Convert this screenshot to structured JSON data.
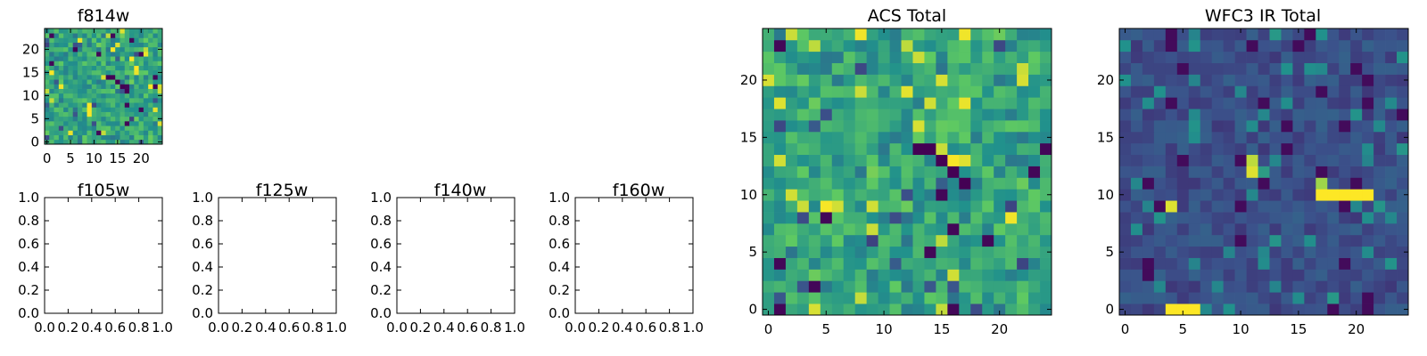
{
  "colormap": {
    "name": "viridis",
    "stops": [
      "#440154",
      "#3b528b",
      "#21918c",
      "#5ec962",
      "#fde725"
    ]
  },
  "chart_data": [
    {
      "type": "heatmap",
      "title": "f814w",
      "xlim": [
        -0.5,
        24.5
      ],
      "ylim": [
        -0.5,
        24.5
      ],
      "xticks": [
        0,
        5,
        10,
        15,
        20
      ],
      "yticks": [
        0,
        5,
        10,
        15,
        20
      ],
      "grid": "off",
      "size": 25,
      "value_range": [
        0,
        1
      ],
      "matrix": []
    },
    {
      "type": "empty",
      "title": "f105w",
      "xlim": [
        0.0,
        1.0
      ],
      "ylim": [
        0.0,
        1.0
      ],
      "xticks": [
        "0.0",
        "0.2",
        "0.4",
        "0.6",
        "0.8",
        "1.0"
      ],
      "yticks": [
        "0.0",
        "0.2",
        "0.4",
        "0.6",
        "0.8",
        "1.0"
      ]
    },
    {
      "type": "empty",
      "title": "f125w",
      "xlim": [
        0.0,
        1.0
      ],
      "ylim": [
        0.0,
        1.0
      ],
      "xticks": [
        "0.0",
        "0.2",
        "0.4",
        "0.6",
        "0.8",
        "1.0"
      ],
      "yticks": [
        "0.0",
        "0.2",
        "0.4",
        "0.6",
        "0.8",
        "1.0"
      ]
    },
    {
      "type": "empty",
      "title": "f140w",
      "xlim": [
        0.0,
        1.0
      ],
      "ylim": [
        0.0,
        1.0
      ],
      "xticks": [
        "0.0",
        "0.2",
        "0.4",
        "0.6",
        "0.8",
        "1.0"
      ],
      "yticks": [
        "0.0",
        "0.2",
        "0.4",
        "0.6",
        "0.8",
        "1.0"
      ]
    },
    {
      "type": "empty",
      "title": "f160w",
      "xlim": [
        0.0,
        1.0
      ],
      "ylim": [
        0.0,
        1.0
      ],
      "xticks": [
        "0.0",
        "0.2",
        "0.4",
        "0.6",
        "0.8",
        "1.0"
      ],
      "yticks": [
        "0.0",
        "0.2",
        "0.4",
        "0.6",
        "0.8",
        "1.0"
      ]
    },
    {
      "type": "heatmap",
      "title": "ACS Total",
      "xlim": [
        -0.5,
        24.5
      ],
      "ylim": [
        -0.5,
        24.5
      ],
      "xticks": [
        0,
        5,
        10,
        15,
        20
      ],
      "yticks": [
        0,
        5,
        10,
        15,
        20
      ],
      "grid": "off",
      "size": 25,
      "value_range": [
        0,
        1
      ],
      "matrix": []
    },
    {
      "type": "heatmap",
      "title": "WFC3 IR Total",
      "xlim": [
        -0.5,
        24.5
      ],
      "ylim": [
        -0.5,
        24.5
      ],
      "xticks": [
        0,
        5,
        10,
        15,
        20
      ],
      "yticks": [
        0,
        5,
        10,
        15,
        20
      ],
      "grid": "off",
      "size": 25,
      "value_range": [
        0,
        1
      ],
      "matrix": []
    }
  ]
}
